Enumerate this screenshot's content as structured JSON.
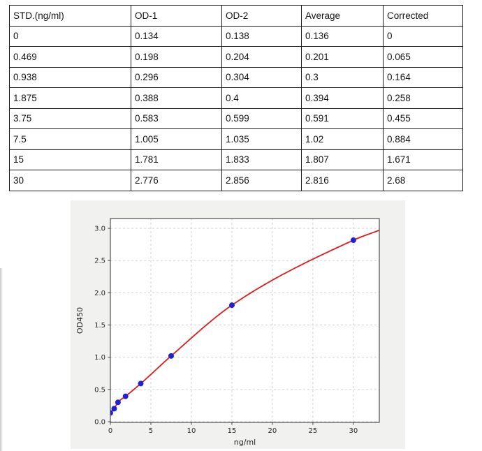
{
  "table": {
    "headers": [
      "STD.(ng/ml)",
      "OD-1",
      "OD-2",
      "Average",
      "Corrected"
    ],
    "rows": [
      [
        "0",
        "0.134",
        "0.138",
        "0.136",
        "0"
      ],
      [
        "0.469",
        "0.198",
        "0.204",
        "0.201",
        "0.065"
      ],
      [
        "0.938",
        "0.296",
        "0.304",
        "0.3",
        "0.164"
      ],
      [
        "1.875",
        "0.388",
        "0.4",
        "0.394",
        "0.258"
      ],
      [
        "3.75",
        "0.583",
        "0.599",
        "0.591",
        "0.455"
      ],
      [
        "7.5",
        "1.005",
        "1.035",
        "1.02",
        "0.884"
      ],
      [
        "15",
        "1.781",
        "1.833",
        "1.807",
        "1.671"
      ],
      [
        "30",
        "2.776",
        "2.856",
        "2.816",
        "2.68"
      ]
    ]
  },
  "chart_data": {
    "type": "scatter",
    "title": "",
    "xlabel": "ng/ml",
    "ylabel": "OD450",
    "x": [
      0,
      0.469,
      0.938,
      1.875,
      3.75,
      7.5,
      15,
      30
    ],
    "y": [
      0.136,
      0.201,
      0.3,
      0.394,
      0.591,
      1.02,
      1.807,
      2.816
    ],
    "curve_extend": [
      33.2,
      2.97
    ],
    "xticks": [
      "0",
      "5",
      "10",
      "15",
      "20",
      "25",
      "30"
    ],
    "yticks": [
      "0.0",
      "0.5",
      "1.0",
      "1.5",
      "2.0",
      "2.5",
      "3.0"
    ],
    "xlim": [
      0,
      33.2
    ],
    "ylim": [
      -0.011,
      3.152
    ],
    "grid": true,
    "legend": null,
    "colors": {
      "marker": "#2121cd",
      "line": "#dd1c1c",
      "figure_bg": "#f1f1f0",
      "plot_bg": "#ffffff",
      "grid": "#cccccc",
      "spine": "#3f3f3f",
      "text": "#262626"
    }
  }
}
